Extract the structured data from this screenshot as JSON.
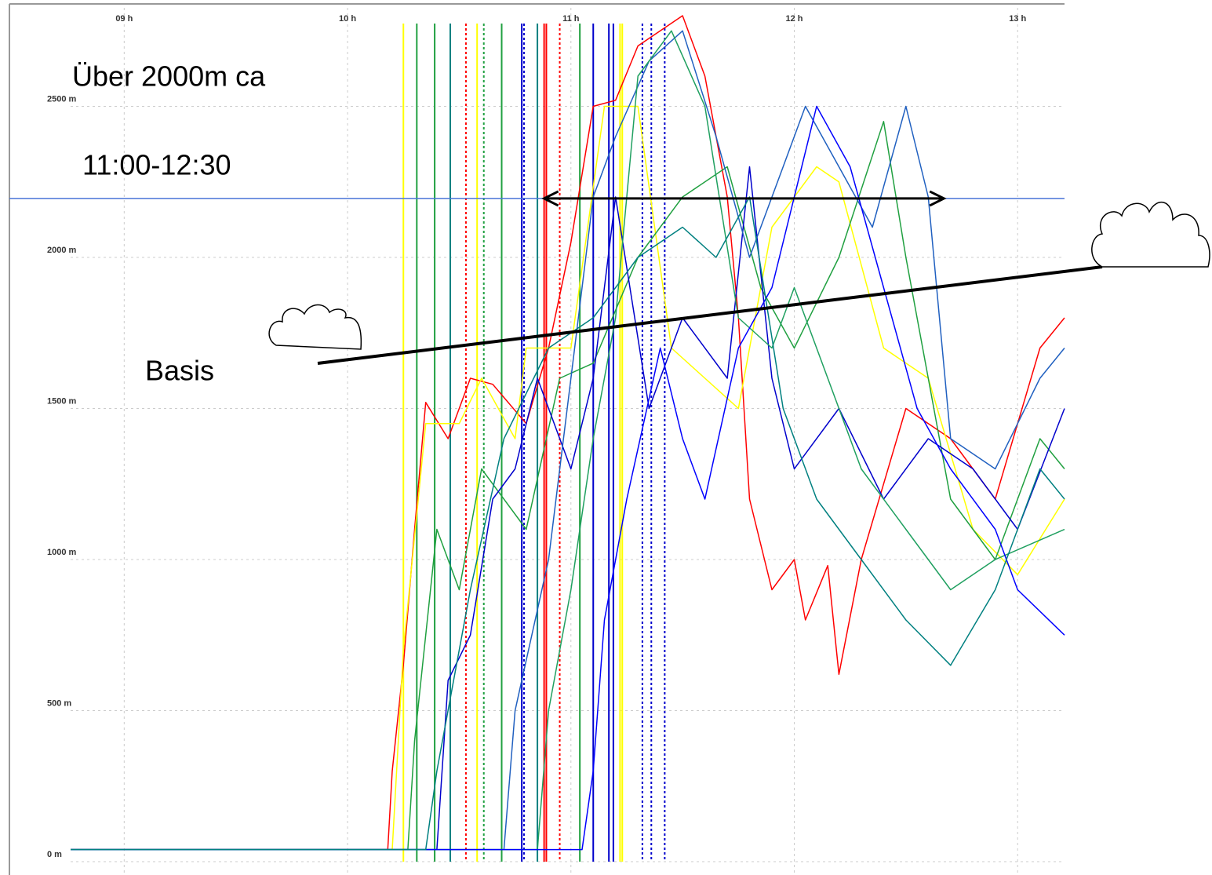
{
  "chart_data": {
    "type": "line",
    "xlim": [
      8.76,
      13.21
    ],
    "ylim": [
      0,
      2826
    ],
    "xticks": [
      {
        "value": 9,
        "label": "09 h"
      },
      {
        "value": 10,
        "label": "10 h"
      },
      {
        "value": 11,
        "label": "11 h"
      },
      {
        "value": 12,
        "label": "12 h"
      },
      {
        "value": 13,
        "label": "13 h"
      }
    ],
    "yticks": [
      {
        "value": 0,
        "label": "0 m"
      },
      {
        "value": 500,
        "label": "500 m"
      },
      {
        "value": 1000,
        "label": "1000 m"
      },
      {
        "value": 1500,
        "label": "1500 m"
      },
      {
        "value": 2000,
        "label": "2000 m"
      },
      {
        "value": 2500,
        "label": "2500 m"
      }
    ],
    "grid": true,
    "annotations": [
      "Über 2000m ca",
      "11:00-12:30",
      "Basis"
    ],
    "hline": {
      "value": 2195,
      "color": "#4a74d8"
    },
    "arrow": {
      "x": [
        10.88,
        12.67
      ],
      "y": 2195
    },
    "markers": [
      {
        "x": 10.25,
        "color": "#ffff00",
        "dashed": false
      },
      {
        "x": 10.31,
        "color": "#20a040",
        "dashed": false
      },
      {
        "x": 10.39,
        "color": "#20a040",
        "dashed": false
      },
      {
        "x": 10.46,
        "color": "#008080",
        "dashed": false
      },
      {
        "x": 10.53,
        "color": "#ff0000",
        "dashed": true
      },
      {
        "x": 10.58,
        "color": "#ffff00",
        "dashed": false
      },
      {
        "x": 10.61,
        "color": "#20a040",
        "dashed": true
      },
      {
        "x": 10.69,
        "color": "#20a040",
        "dashed": false
      },
      {
        "x": 10.78,
        "color": "#0000cc",
        "dashed": false
      },
      {
        "x": 10.79,
        "color": "#0000cc",
        "dashed": true
      },
      {
        "x": 10.85,
        "color": "#008080",
        "dashed": false
      },
      {
        "x": 10.88,
        "color": "#ff0000",
        "dashed": false
      },
      {
        "x": 10.89,
        "color": "#ff0000",
        "dashed": false
      },
      {
        "x": 10.95,
        "color": "#ff0000",
        "dashed": true
      },
      {
        "x": 11.04,
        "color": "#20a040",
        "dashed": false
      },
      {
        "x": 11.1,
        "color": "#0000cc",
        "dashed": false
      },
      {
        "x": 11.17,
        "color": "#0000cc",
        "dashed": false
      },
      {
        "x": 11.19,
        "color": "#0000cc",
        "dashed": false
      },
      {
        "x": 11.22,
        "color": "#ffff00",
        "dashed": false
      },
      {
        "x": 11.23,
        "color": "#ffff00",
        "dashed": false
      },
      {
        "x": 11.32,
        "color": "#0000cc",
        "dashed": true
      },
      {
        "x": 11.36,
        "color": "#0000cc",
        "dashed": true
      },
      {
        "x": 11.42,
        "color": "#0000cc",
        "dashed": true
      }
    ],
    "series": [
      {
        "color": "#ff0000",
        "x": [
          8.76,
          10.18,
          10.2,
          10.25,
          10.3,
          10.35,
          10.45,
          10.55,
          10.65,
          10.8,
          10.9,
          11.0,
          11.1,
          11.2,
          11.3,
          11.5,
          11.6,
          11.7,
          11.75,
          11.8,
          11.9,
          12.0,
          12.05,
          12.15,
          12.2,
          12.3,
          12.5,
          12.7,
          12.9,
          13.1,
          13.21
        ],
        "values": [
          40,
          40,
          300,
          650,
          1100,
          1520,
          1400,
          1600,
          1580,
          1450,
          1700,
          2050,
          2500,
          2520,
          2700,
          2800,
          2600,
          2200,
          1800,
          1200,
          900,
          1000,
          800,
          980,
          620,
          1000,
          1500,
          1400,
          1200,
          1700,
          1800
        ]
      },
      {
        "color": "#ffff00",
        "x": [
          8.76,
          10.2,
          10.25,
          10.35,
          10.5,
          10.6,
          10.75,
          10.8,
          11.0,
          11.15,
          11.3,
          11.45,
          11.6,
          11.75,
          11.9,
          12.0,
          12.1,
          12.2,
          12.4,
          12.6,
          12.8,
          13.0,
          13.21
        ],
        "values": [
          40,
          40,
          700,
          1450,
          1450,
          1600,
          1400,
          1700,
          1700,
          2500,
          2500,
          1700,
          1600,
          1500,
          2100,
          2200,
          2300,
          2250,
          1700,
          1600,
          1100,
          950,
          1200
        ]
      },
      {
        "color": "#20a040",
        "x": [
          8.76,
          10.27,
          10.3,
          10.4,
          10.5,
          10.6,
          10.8,
          10.95,
          11.1,
          11.3,
          11.5,
          11.7,
          11.85,
          12.0,
          12.2,
          12.4,
          12.5,
          12.7,
          12.9,
          13.1,
          13.21
        ],
        "values": [
          40,
          40,
          400,
          1100,
          900,
          1300,
          1100,
          1600,
          1650,
          2000,
          2200,
          2300,
          1900,
          1700,
          2000,
          2450,
          2000,
          1200,
          1000,
          1400,
          1300
        ]
      },
      {
        "color": "#0000cc",
        "x": [
          8.76,
          10.4,
          10.45,
          10.55,
          10.65,
          10.75,
          10.85,
          11.0,
          11.1,
          11.2,
          11.35,
          11.5,
          11.7,
          11.8,
          11.9,
          12.0,
          12.2,
          12.4,
          12.6,
          12.8,
          13.0,
          13.21
        ],
        "values": [
          40,
          40,
          600,
          750,
          1200,
          1300,
          1600,
          1300,
          1600,
          2200,
          1500,
          1800,
          1600,
          2300,
          1600,
          1300,
          1500,
          1200,
          1400,
          1300,
          1100,
          1500
        ]
      },
      {
        "color": "#2060c0",
        "x": [
          8.76,
          10.7,
          10.75,
          10.9,
          11.0,
          11.1,
          11.2,
          11.35,
          11.5,
          11.65,
          11.8,
          11.95,
          12.05,
          12.2,
          12.35,
          12.5,
          12.6,
          12.7,
          12.9,
          13.1,
          13.21
        ],
        "values": [
          40,
          40,
          500,
          1000,
          1600,
          2200,
          2400,
          2650,
          2750,
          2400,
          2000,
          2300,
          2500,
          2300,
          2100,
          2500,
          2200,
          1400,
          1300,
          1600,
          1700
        ]
      },
      {
        "color": "#20a060",
        "x": [
          8.76,
          10.85,
          10.9,
          11.0,
          11.1,
          11.2,
          11.3,
          11.45,
          11.6,
          11.75,
          11.9,
          12.0,
          12.15,
          12.3,
          12.5,
          12.7,
          12.9,
          13.21
        ],
        "values": [
          40,
          40,
          500,
          900,
          1400,
          1800,
          2600,
          2750,
          2500,
          1800,
          1700,
          1900,
          1600,
          1300,
          1100,
          900,
          1000,
          1100
        ]
      },
      {
        "color": "#0000ff",
        "x": [
          8.76,
          11.05,
          11.1,
          11.15,
          11.25,
          11.4,
          11.5,
          11.6,
          11.75,
          11.9,
          12.1,
          12.25,
          12.4,
          12.55,
          12.7,
          12.9,
          13.0,
          13.21
        ],
        "values": [
          40,
          40,
          300,
          800,
          1200,
          1700,
          1400,
          1200,
          1700,
          1900,
          2500,
          2300,
          1900,
          1500,
          1300,
          1100,
          900,
          750
        ]
      },
      {
        "color": "#008080",
        "x": [
          8.76,
          10.35,
          10.4,
          10.55,
          10.7,
          10.9,
          11.1,
          11.3,
          11.5,
          11.65,
          11.8,
          11.95,
          12.1,
          12.3,
          12.5,
          12.7,
          12.9,
          13.1,
          13.21
        ],
        "values": [
          40,
          40,
          300,
          900,
          1400,
          1700,
          1800,
          2000,
          2100,
          2000,
          2200,
          1500,
          1200,
          1000,
          800,
          650,
          900,
          1300,
          1200
        ]
      }
    ]
  }
}
